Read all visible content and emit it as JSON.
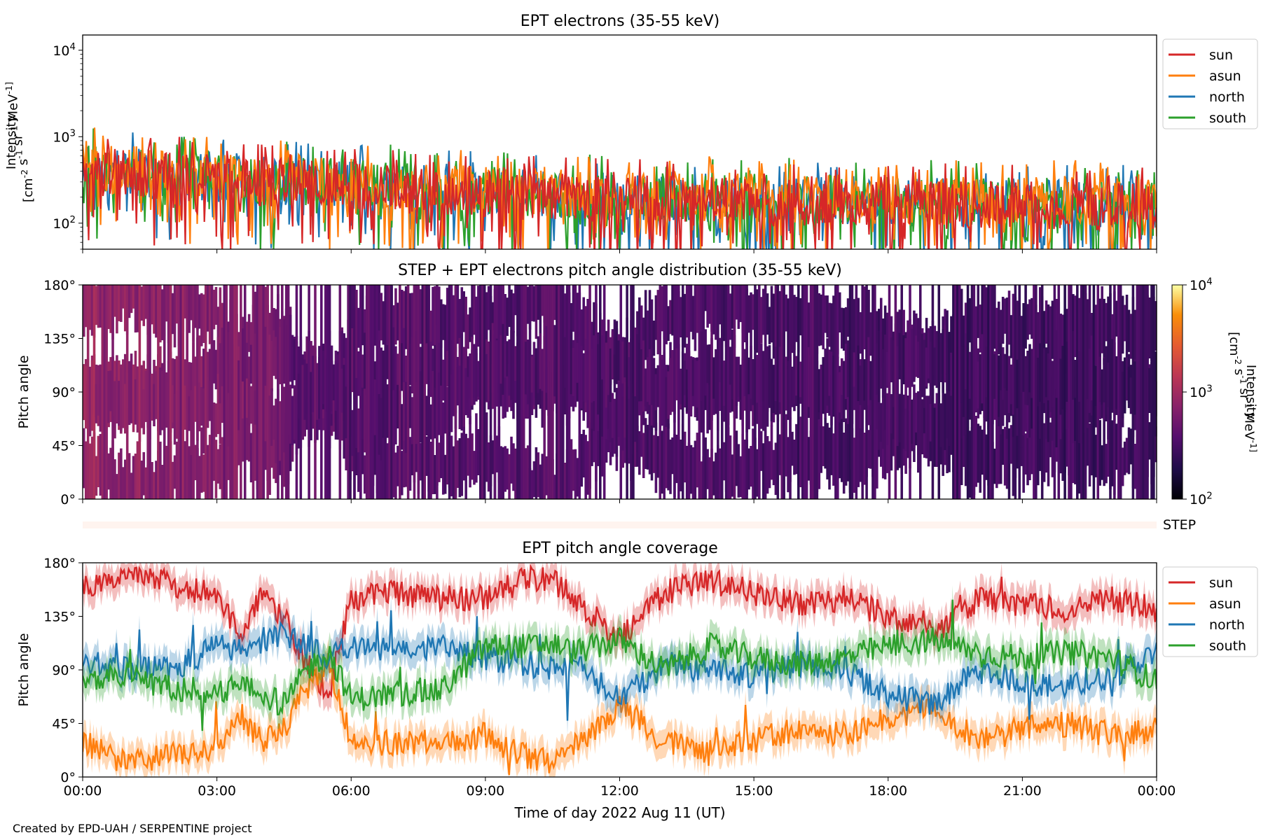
{
  "chart_data": [
    {
      "type": "line",
      "title": "EPT electrons (35-55 keV)",
      "ylabel_lines": [
        "Intensity",
        "[cm^-2 s^-1 sr^-1 MeV^-1]"
      ],
      "yscale": "log",
      "ylim": [
        50,
        15000
      ],
      "yticks": [
        {
          "v": 100,
          "label": "10^2"
        },
        {
          "v": 1000,
          "label": "10^3"
        },
        {
          "v": 10000,
          "label": "10^4"
        }
      ],
      "xlim_hours": [
        0,
        24
      ],
      "legend": {
        "placement": "outside-right-top",
        "entries": [
          "sun",
          "asun",
          "north",
          "south"
        ]
      },
      "series": [
        {
          "name": "north",
          "color": "#1f77b4",
          "level": [
            420,
            330,
            290,
            240,
            210,
            190,
            180,
            175,
            170,
            165
          ]
        },
        {
          "name": "south",
          "color": "#2ca02c",
          "level": [
            430,
            340,
            300,
            250,
            220,
            200,
            190,
            180,
            175,
            170
          ]
        },
        {
          "name": "asun",
          "color": "#ff7f0e",
          "level": [
            440,
            360,
            310,
            260,
            230,
            205,
            195,
            185,
            180,
            175
          ]
        },
        {
          "name": "sun",
          "color": "#d62728",
          "level": [
            400,
            320,
            280,
            230,
            200,
            180,
            170,
            165,
            160,
            155
          ]
        }
      ]
    },
    {
      "type": "heatmap",
      "title": "STEP + EPT electrons pitch angle distribution (35-55 keV)",
      "ylabel": "Pitch angle",
      "ylim": [
        0,
        180
      ],
      "yticks": [
        "0°",
        "45°",
        "90°",
        "135°",
        "180°"
      ],
      "xlim_hours": [
        0,
        24
      ],
      "colormap": "inferno",
      "colorbar": {
        "scale": "log",
        "range": [
          100,
          10000
        ],
        "ticks": [
          "10^2",
          "10^3",
          "10^4"
        ],
        "label_lines": [
          "Intensity",
          "[cm^-2 s^-1 sr^-1 MeV^-1]"
        ]
      }
    },
    {
      "type": "strip",
      "label": "STEP",
      "color": "#fff4ef"
    },
    {
      "type": "line",
      "title": "EPT pitch angle coverage",
      "ylabel": "Pitch angle",
      "ylim": [
        0,
        180
      ],
      "yticks": [
        "0°",
        "45°",
        "90°",
        "135°",
        "180°"
      ],
      "xlim_hours": [
        0,
        24
      ],
      "xlabel": "Time of day 2022 Aug 11 (UT)",
      "xticks": [
        "00:00",
        "03:00",
        "06:00",
        "09:00",
        "12:00",
        "15:00",
        "18:00",
        "21:00",
        "00:00"
      ],
      "legend": {
        "placement": "outside-right-top",
        "entries": [
          "sun",
          "asun",
          "north",
          "south"
        ]
      },
      "series": [
        {
          "name": "sun",
          "color": "#d62728",
          "x_hours": [
            0,
            1,
            2,
            3,
            3.5,
            4,
            4.5,
            5,
            5.5,
            6,
            7,
            8,
            9,
            10,
            10.5,
            11,
            12,
            13,
            14,
            15,
            16,
            17,
            18,
            19,
            20,
            21,
            22,
            23,
            24
          ],
          "pitch": [
            160,
            172,
            162,
            152,
            120,
            150,
            135,
            95,
            70,
            150,
            155,
            150,
            150,
            168,
            165,
            150,
            115,
            155,
            165,
            155,
            145,
            150,
            135,
            120,
            150,
            145,
            140,
            150,
            140
          ]
        },
        {
          "name": "asun",
          "color": "#ff7f0e",
          "x_hours": [
            0,
            1,
            2,
            3,
            3.5,
            4,
            4.5,
            5,
            5.5,
            6,
            7,
            8,
            9,
            10,
            10.5,
            11,
            12,
            13,
            14,
            15,
            16,
            17,
            18,
            19,
            20,
            21,
            22,
            23,
            24
          ],
          "pitch": [
            30,
            10,
            20,
            25,
            55,
            30,
            40,
            75,
            95,
            30,
            28,
            30,
            35,
            15,
            12,
            25,
            60,
            30,
            20,
            30,
            40,
            35,
            50,
            60,
            30,
            40,
            45,
            35,
            40
          ]
        },
        {
          "name": "north",
          "color": "#1f77b4",
          "x_hours": [
            0,
            1,
            2,
            3,
            3.5,
            4,
            4.5,
            5,
            5.5,
            6,
            7,
            8,
            9,
            10,
            10.5,
            11,
            12,
            13,
            14,
            15,
            16,
            17,
            18,
            19,
            20,
            21,
            22,
            23,
            24
          ],
          "pitch": [
            95,
            92,
            90,
            110,
            105,
            115,
            120,
            110,
            100,
            110,
            105,
            110,
            100,
            95,
            90,
            95,
            65,
            95,
            90,
            85,
            95,
            90,
            70,
            60,
            90,
            80,
            75,
            85,
            105
          ]
        },
        {
          "name": "south",
          "color": "#2ca02c",
          "x_hours": [
            0,
            1,
            2,
            3,
            3.5,
            4,
            4.5,
            5,
            5.5,
            6,
            7,
            8,
            9,
            10,
            10.5,
            11,
            12,
            13,
            14,
            15,
            16,
            17,
            18,
            19,
            20,
            21,
            22,
            23,
            24
          ],
          "pitch": [
            80,
            85,
            75,
            72,
            78,
            70,
            60,
            90,
            105,
            65,
            70,
            72,
            110,
            110,
            112,
            105,
            115,
            90,
            110,
            100,
            95,
            100,
            110,
            115,
            105,
            100,
            105,
            100,
            80
          ]
        }
      ]
    }
  ],
  "footer_text": "Created by EPD-UAH / SERPENTINE project"
}
